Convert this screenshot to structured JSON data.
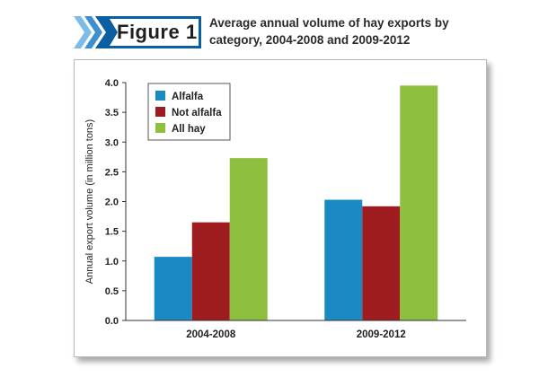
{
  "figure_label": "Figure 1",
  "figure_title": "Average annual volume of hay exports by category, 2004-2008 and 2009-2012",
  "colors": {
    "badge_dark": "#0a5fa3",
    "badge_light": "#7dbce6"
  },
  "chart_data": {
    "type": "bar",
    "title": "",
    "xlabel": "",
    "ylabel": "Annual export volume (in million tons)",
    "categories": [
      "2004-2008",
      "2009-2012"
    ],
    "ylim": [
      0,
      4.0
    ],
    "yticks": [
      "0.0",
      "0.5",
      "1.0",
      "1.5",
      "2.0",
      "2.5",
      "3.0",
      "3.5",
      "4.0"
    ],
    "series": [
      {
        "name": "Alfalfa",
        "color": "#1a8ac4",
        "values": [
          1.07,
          2.03
        ]
      },
      {
        "name": "Not alfalfa",
        "color": "#9e1b1f",
        "values": [
          1.65,
          1.92
        ]
      },
      {
        "name": "All hay",
        "color": "#8ebf3f",
        "values": [
          2.73,
          3.95
        ]
      }
    ],
    "legend_position": "top-left",
    "grid": false
  }
}
